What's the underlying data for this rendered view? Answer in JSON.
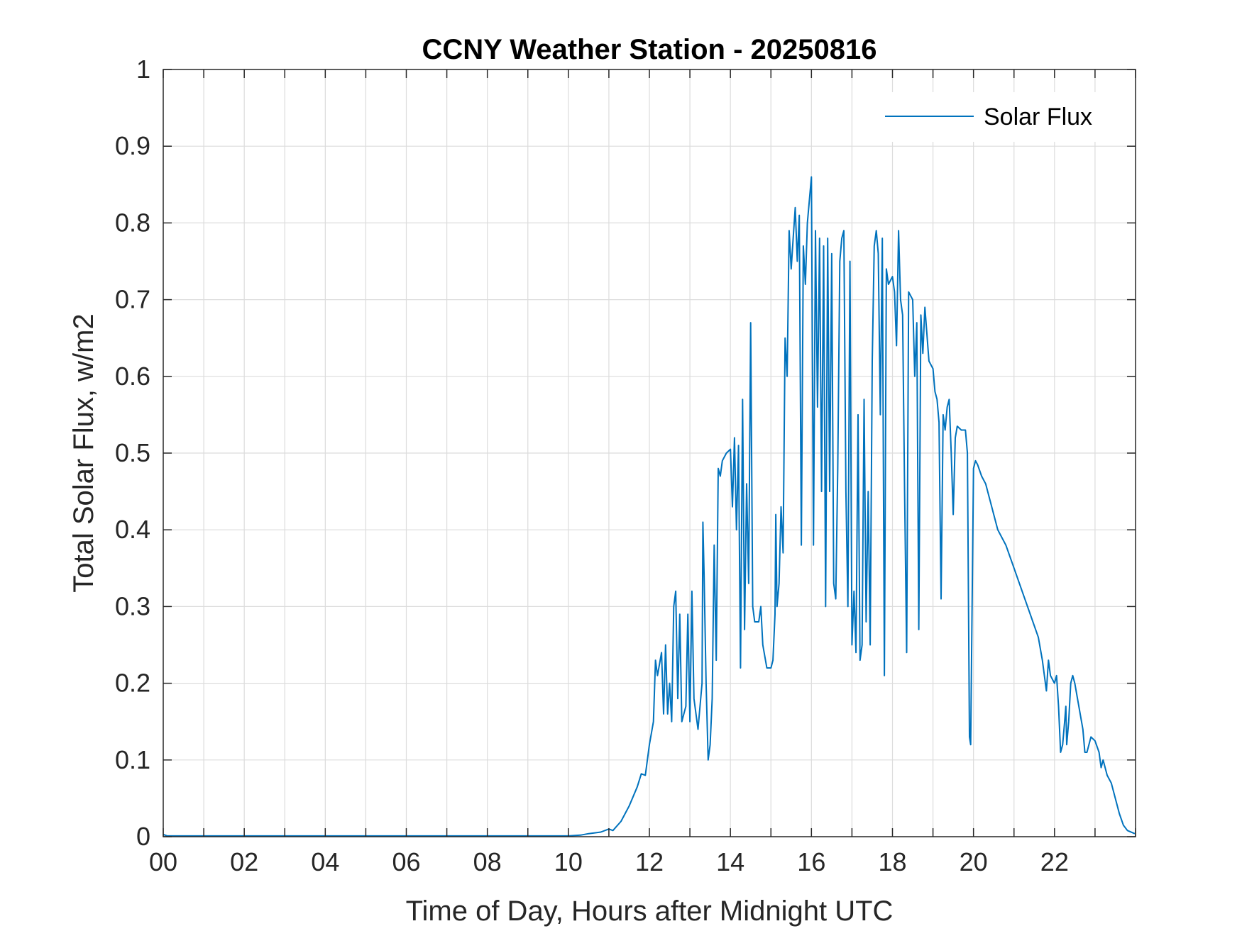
{
  "chart_data": {
    "type": "line",
    "title": "CCNY Weather Station - 20250816",
    "xlabel": "Time of Day, Hours after Midnight UTC",
    "ylabel": "Total Solar Flux, w/m2",
    "xlim": [
      0,
      24
    ],
    "ylim": [
      0,
      1
    ],
    "grid": true,
    "legend_position": "top-right",
    "x_tick_values": [
      0,
      2,
      4,
      6,
      8,
      10,
      12,
      14,
      16,
      18,
      20,
      22
    ],
    "x_tick_labels": [
      "00",
      "02",
      "04",
      "06",
      "08",
      "10",
      "12",
      "14",
      "16",
      "18",
      "20",
      "22"
    ],
    "y_tick_values": [
      0,
      0.1,
      0.2,
      0.3,
      0.4,
      0.5,
      0.6,
      0.7,
      0.8,
      0.9,
      1
    ],
    "y_tick_labels": [
      "0",
      "0.1",
      "0.2",
      "0.3",
      "0.4",
      "0.5",
      "0.6",
      "0.7",
      "0.8",
      "0.9",
      "1"
    ],
    "series": [
      {
        "name": "Solar Flux",
        "color": "#0072BD",
        "points": [
          [
            0,
            0.003
          ],
          [
            0.1,
            0.001
          ],
          [
            2,
            0.001
          ],
          [
            6,
            0.001
          ],
          [
            10,
            0.001
          ],
          [
            10.3,
            0.002
          ],
          [
            10.5,
            0.004
          ],
          [
            10.8,
            0.006
          ],
          [
            11.0,
            0.01
          ],
          [
            11.1,
            0.008
          ],
          [
            11.3,
            0.02
          ],
          [
            11.5,
            0.04
          ],
          [
            11.7,
            0.065
          ],
          [
            11.8,
            0.082
          ],
          [
            11.9,
            0.08
          ],
          [
            12.0,
            0.12
          ],
          [
            12.1,
            0.15
          ],
          [
            12.15,
            0.23
          ],
          [
            12.2,
            0.21
          ],
          [
            12.3,
            0.24
          ],
          [
            12.35,
            0.16
          ],
          [
            12.4,
            0.25
          ],
          [
            12.45,
            0.16
          ],
          [
            12.5,
            0.2
          ],
          [
            12.55,
            0.15
          ],
          [
            12.6,
            0.3
          ],
          [
            12.65,
            0.32
          ],
          [
            12.7,
            0.18
          ],
          [
            12.75,
            0.29
          ],
          [
            12.8,
            0.15
          ],
          [
            12.9,
            0.17
          ],
          [
            12.95,
            0.29
          ],
          [
            13.0,
            0.15
          ],
          [
            13.05,
            0.32
          ],
          [
            13.1,
            0.18
          ],
          [
            13.2,
            0.14
          ],
          [
            13.3,
            0.2
          ],
          [
            13.32,
            0.41
          ],
          [
            13.35,
            0.34
          ],
          [
            13.4,
            0.2
          ],
          [
            13.45,
            0.1
          ],
          [
            13.5,
            0.12
          ],
          [
            13.55,
            0.18
          ],
          [
            13.6,
            0.38
          ],
          [
            13.65,
            0.23
          ],
          [
            13.7,
            0.48
          ],
          [
            13.75,
            0.47
          ],
          [
            13.8,
            0.49
          ],
          [
            13.9,
            0.5
          ],
          [
            14.0,
            0.505
          ],
          [
            14.05,
            0.43
          ],
          [
            14.1,
            0.52
          ],
          [
            14.15,
            0.4
          ],
          [
            14.2,
            0.51
          ],
          [
            14.25,
            0.22
          ],
          [
            14.3,
            0.57
          ],
          [
            14.35,
            0.27
          ],
          [
            14.4,
            0.46
          ],
          [
            14.45,
            0.33
          ],
          [
            14.5,
            0.67
          ],
          [
            14.55,
            0.3
          ],
          [
            14.6,
            0.28
          ],
          [
            14.7,
            0.28
          ],
          [
            14.75,
            0.3
          ],
          [
            14.8,
            0.25
          ],
          [
            14.9,
            0.22
          ],
          [
            15.0,
            0.22
          ],
          [
            15.05,
            0.23
          ],
          [
            15.1,
            0.29
          ],
          [
            15.12,
            0.42
          ],
          [
            15.15,
            0.3
          ],
          [
            15.2,
            0.33
          ],
          [
            15.25,
            0.43
          ],
          [
            15.3,
            0.37
          ],
          [
            15.35,
            0.65
          ],
          [
            15.4,
            0.6
          ],
          [
            15.45,
            0.79
          ],
          [
            15.5,
            0.74
          ],
          [
            15.55,
            0.78
          ],
          [
            15.6,
            0.82
          ],
          [
            15.65,
            0.75
          ],
          [
            15.7,
            0.81
          ],
          [
            15.75,
            0.38
          ],
          [
            15.8,
            0.77
          ],
          [
            15.85,
            0.72
          ],
          [
            15.9,
            0.8
          ],
          [
            16.0,
            0.86
          ],
          [
            16.05,
            0.38
          ],
          [
            16.1,
            0.79
          ],
          [
            16.15,
            0.56
          ],
          [
            16.2,
            0.78
          ],
          [
            16.25,
            0.45
          ],
          [
            16.3,
            0.77
          ],
          [
            16.35,
            0.3
          ],
          [
            16.4,
            0.78
          ],
          [
            16.45,
            0.45
          ],
          [
            16.5,
            0.76
          ],
          [
            16.55,
            0.33
          ],
          [
            16.6,
            0.31
          ],
          [
            16.65,
            0.48
          ],
          [
            16.7,
            0.75
          ],
          [
            16.75,
            0.78
          ],
          [
            16.8,
            0.79
          ],
          [
            16.85,
            0.45
          ],
          [
            16.9,
            0.3
          ],
          [
            16.95,
            0.75
          ],
          [
            17.0,
            0.25
          ],
          [
            17.05,
            0.32
          ],
          [
            17.1,
            0.24
          ],
          [
            17.15,
            0.55
          ],
          [
            17.2,
            0.23
          ],
          [
            17.25,
            0.25
          ],
          [
            17.3,
            0.57
          ],
          [
            17.35,
            0.28
          ],
          [
            17.4,
            0.45
          ],
          [
            17.45,
            0.25
          ],
          [
            17.5,
            0.62
          ],
          [
            17.55,
            0.77
          ],
          [
            17.6,
            0.79
          ],
          [
            17.65,
            0.76
          ],
          [
            17.7,
            0.55
          ],
          [
            17.75,
            0.78
          ],
          [
            17.8,
            0.21
          ],
          [
            17.85,
            0.74
          ],
          [
            17.9,
            0.72
          ],
          [
            18.0,
            0.73
          ],
          [
            18.05,
            0.71
          ],
          [
            18.1,
            0.64
          ],
          [
            18.15,
            0.79
          ],
          [
            18.2,
            0.7
          ],
          [
            18.25,
            0.68
          ],
          [
            18.3,
            0.45
          ],
          [
            18.35,
            0.24
          ],
          [
            18.4,
            0.71
          ],
          [
            18.5,
            0.7
          ],
          [
            18.55,
            0.6
          ],
          [
            18.6,
            0.67
          ],
          [
            18.65,
            0.27
          ],
          [
            18.7,
            0.68
          ],
          [
            18.75,
            0.63
          ],
          [
            18.8,
            0.69
          ],
          [
            18.9,
            0.62
          ],
          [
            19.0,
            0.61
          ],
          [
            19.05,
            0.58
          ],
          [
            19.1,
            0.57
          ],
          [
            19.15,
            0.54
          ],
          [
            19.2,
            0.31
          ],
          [
            19.25,
            0.55
          ],
          [
            19.3,
            0.53
          ],
          [
            19.35,
            0.56
          ],
          [
            19.4,
            0.57
          ],
          [
            19.45,
            0.5
          ],
          [
            19.5,
            0.42
          ],
          [
            19.55,
            0.52
          ],
          [
            19.6,
            0.535
          ],
          [
            19.7,
            0.53
          ],
          [
            19.8,
            0.53
          ],
          [
            19.85,
            0.5
          ],
          [
            19.9,
            0.13
          ],
          [
            19.93,
            0.12
          ],
          [
            20.0,
            0.48
          ],
          [
            20.05,
            0.49
          ],
          [
            20.1,
            0.485
          ],
          [
            20.2,
            0.47
          ],
          [
            20.3,
            0.46
          ],
          [
            20.4,
            0.44
          ],
          [
            20.5,
            0.42
          ],
          [
            20.6,
            0.4
          ],
          [
            20.8,
            0.38
          ],
          [
            21.0,
            0.35
          ],
          [
            21.2,
            0.32
          ],
          [
            21.4,
            0.29
          ],
          [
            21.6,
            0.26
          ],
          [
            21.7,
            0.23
          ],
          [
            21.8,
            0.19
          ],
          [
            21.85,
            0.23
          ],
          [
            21.9,
            0.21
          ],
          [
            22.0,
            0.2
          ],
          [
            22.05,
            0.21
          ],
          [
            22.1,
            0.17
          ],
          [
            22.15,
            0.11
          ],
          [
            22.2,
            0.12
          ],
          [
            22.25,
            0.15
          ],
          [
            22.28,
            0.17
          ],
          [
            22.3,
            0.12
          ],
          [
            22.35,
            0.15
          ],
          [
            22.4,
            0.2
          ],
          [
            22.45,
            0.21
          ],
          [
            22.5,
            0.2
          ],
          [
            22.6,
            0.17
          ],
          [
            22.7,
            0.14
          ],
          [
            22.75,
            0.11
          ],
          [
            22.8,
            0.11
          ],
          [
            22.9,
            0.13
          ],
          [
            23.0,
            0.125
          ],
          [
            23.1,
            0.11
          ],
          [
            23.15,
            0.09
          ],
          [
            23.2,
            0.1
          ],
          [
            23.3,
            0.08
          ],
          [
            23.4,
            0.07
          ],
          [
            23.5,
            0.05
          ],
          [
            23.6,
            0.03
          ],
          [
            23.7,
            0.015
          ],
          [
            23.8,
            0.008
          ],
          [
            23.98,
            0.004
          ]
        ]
      }
    ]
  }
}
